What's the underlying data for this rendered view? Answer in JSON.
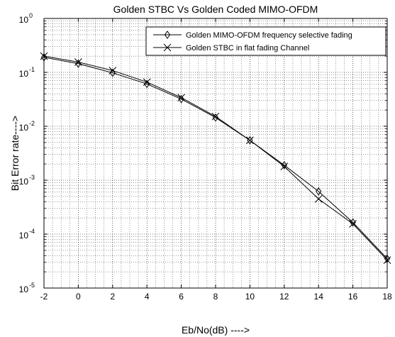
{
  "chart_data": {
    "type": "line",
    "title": "Golden STBC Vs Golden Coded MIMO-OFDM",
    "xlabel": "Eb/No(dB) ---->",
    "ylabel": "Bit Error rate---->",
    "x": [
      -2,
      0,
      2,
      4,
      6,
      8,
      10,
      12,
      14,
      16,
      18
    ],
    "xlim": [
      -2,
      18
    ],
    "ylim": [
      1e-05,
      1
    ],
    "yscale": "log",
    "grid": "on (major and minor, dotted)",
    "legend_position": "top-right",
    "x_ticks": [
      "-2",
      "0",
      "2",
      "4",
      "6",
      "8",
      "10",
      "12",
      "14",
      "16",
      "18"
    ],
    "y_tick_bases": [
      "10",
      "10",
      "10",
      "10",
      "10",
      "10"
    ],
    "y_tick_exponents": [
      "-5",
      "-4",
      "-3",
      "-2",
      "-1",
      "0"
    ],
    "series": [
      {
        "name": "Golden MIMO-OFDM frequency selective fading",
        "marker": "diamond",
        "color": "#000000",
        "values": [
          0.19,
          0.145,
          0.098,
          0.061,
          0.032,
          0.0145,
          0.0055,
          0.0019,
          0.00062,
          0.000165,
          3.5e-05
        ]
      },
      {
        "name": "Golden STBC in flat fading Channel",
        "marker": "x",
        "color": "#000000",
        "values": [
          0.2,
          0.155,
          0.108,
          0.066,
          0.034,
          0.0152,
          0.0055,
          0.0018,
          0.00045,
          0.000155,
          3.3e-05
        ]
      }
    ]
  }
}
